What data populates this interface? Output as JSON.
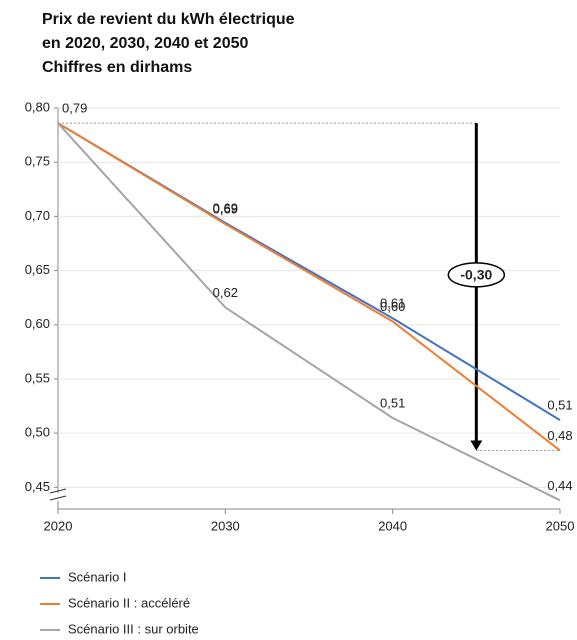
{
  "chart_data": {
    "type": "line",
    "title": [
      "Prix de revient du kWh électrique",
      "en 2020, 2030, 2040 et 2050",
      "Chiffres en dirhams"
    ],
    "x": [
      2020,
      2030,
      2040,
      2050
    ],
    "xlim": [
      2020,
      2050
    ],
    "xticks": [
      2020,
      2030,
      2040,
      2050
    ],
    "ylim": [
      0.43,
      0.8
    ],
    "yticks": [
      {
        "value": 0.45,
        "label": "0,45"
      },
      {
        "value": 0.5,
        "label": "0,50"
      },
      {
        "value": 0.55,
        "label": "0,55"
      },
      {
        "value": 0.6,
        "label": "0,60"
      },
      {
        "value": 0.65,
        "label": "0,65"
      },
      {
        "value": 0.7,
        "label": "0,70"
      },
      {
        "value": 0.75,
        "label": "0,75"
      },
      {
        "value": 0.8,
        "label": "0,80"
      }
    ],
    "grid": true,
    "legend": "bottom",
    "series": [
      {
        "name": "Scénario I",
        "color": "#4472c4",
        "values": [
          0.786,
          0.694,
          0.606,
          0.512
        ],
        "value_labels": [
          "0,79",
          "0,69",
          "0,61",
          "0,51"
        ]
      },
      {
        "name": "Scénario II : accéléré",
        "color": "#ed7d31",
        "values": [
          0.786,
          0.693,
          0.603,
          0.484
        ],
        "value_labels": [
          null,
          "0,69",
          "0,60",
          "0,48"
        ]
      },
      {
        "name": "Scénario III : sur orbite",
        "color": "#a5a5a5",
        "values": [
          0.786,
          0.616,
          0.514,
          0.438
        ],
        "value_labels": [
          null,
          "0,62",
          "0,51",
          "0,44"
        ]
      }
    ],
    "annotation": {
      "text": "-0,30",
      "x": 2045,
      "from": 0.786,
      "to": 0.484
    }
  }
}
